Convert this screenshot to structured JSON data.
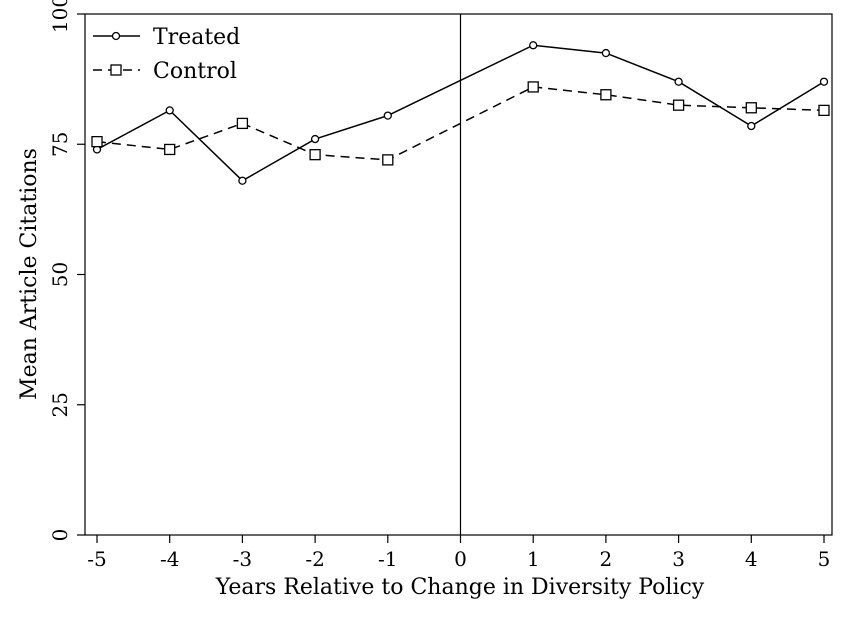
{
  "chart_data": {
    "type": "line",
    "xlabel": "Years Relative to Change in Diversity Policy",
    "ylabel": "Mean Article Citations",
    "x": [
      -5,
      -4,
      -3,
      -2,
      -1,
      1,
      2,
      3,
      4,
      5
    ],
    "xticks": [
      -5,
      -4,
      -3,
      -2,
      -1,
      0,
      1,
      2,
      3,
      4,
      5
    ],
    "yticks": [
      0,
      25,
      50,
      75,
      100
    ],
    "xlim": [
      -5,
      5
    ],
    "ylim": [
      0,
      100
    ],
    "reference_line_x": 0,
    "grid": false,
    "legend_position": "top-left",
    "series": [
      {
        "name": "Treated",
        "marker": "circle",
        "line": "solid",
        "values": [
          74,
          81.5,
          68,
          76,
          80.5,
          94,
          92.5,
          87,
          78.5,
          87
        ]
      },
      {
        "name": "Control",
        "marker": "square",
        "line": "dashed",
        "values": [
          75.5,
          74,
          79,
          73,
          72,
          86,
          84.5,
          82.5,
          82,
          81.5
        ]
      }
    ]
  }
}
